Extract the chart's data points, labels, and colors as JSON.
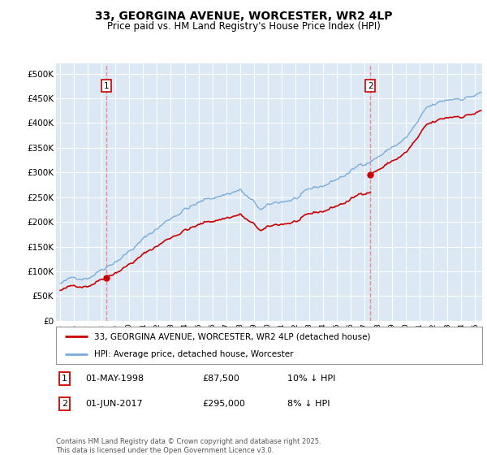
{
  "title": "33, GEORGINA AVENUE, WORCESTER, WR2 4LP",
  "subtitle": "Price paid vs. HM Land Registry's House Price Index (HPI)",
  "legend_label1": "33, GEORGINA AVENUE, WORCESTER, WR2 4LP (detached house)",
  "legend_label2": "HPI: Average price, detached house, Worcester",
  "annotation1_label": "1",
  "annotation1_date": "01-MAY-1998",
  "annotation1_price": "£87,500",
  "annotation1_hpi": "10% ↓ HPI",
  "annotation1_year": 1998.33,
  "annotation1_value": 87500,
  "annotation2_label": "2",
  "annotation2_date": "01-JUN-2017",
  "annotation2_price": "£295,000",
  "annotation2_hpi": "8% ↓ HPI",
  "annotation2_year": 2017.42,
  "annotation2_value": 295000,
  "ylim": [
    0,
    520000
  ],
  "yticks": [
    0,
    50000,
    100000,
    150000,
    200000,
    250000,
    300000,
    350000,
    400000,
    450000,
    500000
  ],
  "ytick_labels": [
    "£0",
    "£50K",
    "£100K",
    "£150K",
    "£200K",
    "£250K",
    "£300K",
    "£350K",
    "£400K",
    "£450K",
    "£500K"
  ],
  "line1_color": "#cc0000",
  "line2_color": "#7aacda",
  "vline_color": "#e88080",
  "chart_bg_color": "#dce9f5",
  "background_color": "#ffffff",
  "grid_color": "#ffffff",
  "copyright_text": "Contains HM Land Registry data © Crown copyright and database right 2025.\nThis data is licensed under the Open Government Licence v3.0.",
  "xlim_start": 1994.7,
  "xlim_end": 2025.5
}
